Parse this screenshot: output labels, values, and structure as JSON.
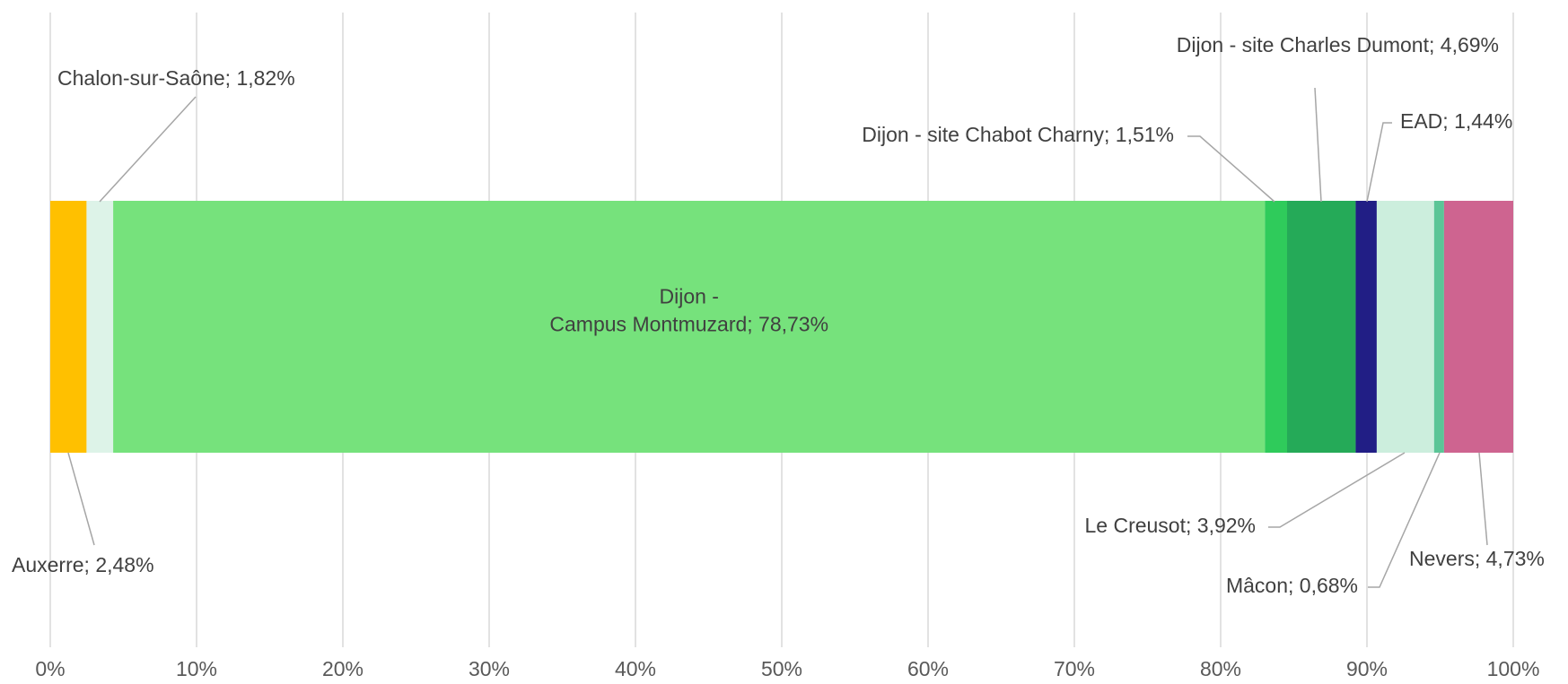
{
  "chart_data": {
    "type": "stacked-bar-100",
    "series": [
      {
        "name": "Auxerre",
        "color": "#FFC000",
        "values": [
          2.48
        ],
        "value_labels": [
          "Auxerre; 2,48%"
        ]
      },
      {
        "name": "Chalon-sur-Saône",
        "color": "#DDF3E8",
        "values": [
          1.82
        ],
        "value_labels": [
          "Chalon-sur-Saône; 1,82%"
        ]
      },
      {
        "name": "Dijon - Campus Montmuzard",
        "color": "#76E27C",
        "values": [
          78.73
        ],
        "value_labels": [
          "Dijon - Campus Montmuzard; 78,73%"
        ]
      },
      {
        "name": "Dijon - site Chabot Charny",
        "color": "#2FCB5B",
        "values": [
          1.51
        ],
        "value_labels": [
          "Dijon - site Chabot Charny; 1,51%"
        ]
      },
      {
        "name": "Dijon - site Charles Dumont",
        "color": "#25AA58",
        "values": [
          4.69
        ],
        "value_labels": [
          "Dijon - site Charles Dumont; 4,69%"
        ]
      },
      {
        "name": "EAD",
        "color": "#211E85",
        "values": [
          1.44
        ],
        "value_labels": [
          "EAD; 1,44%"
        ]
      },
      {
        "name": "Le Creusot",
        "color": "#CCEEDD",
        "values": [
          3.92
        ],
        "value_labels": [
          "Le Creusot; 3,92%"
        ]
      },
      {
        "name": "Mâcon",
        "color": "#5BC597",
        "values": [
          0.68
        ],
        "value_labels": [
          "Mâcon; 0,68%"
        ]
      },
      {
        "name": "Nevers",
        "color": "#CE6490",
        "values": [
          4.73
        ],
        "value_labels": [
          "Nevers; 4,73%"
        ]
      }
    ],
    "xlim": [
      0,
      100
    ],
    "xticks": [
      {
        "value": 0,
        "label": "0%"
      },
      {
        "value": 10,
        "label": "10%"
      },
      {
        "value": 20,
        "label": "20%"
      },
      {
        "value": 30,
        "label": "30%"
      },
      {
        "value": 40,
        "label": "40%"
      },
      {
        "value": 50,
        "label": "50%"
      },
      {
        "value": 60,
        "label": "60%"
      },
      {
        "value": 70,
        "label": "70%"
      },
      {
        "value": 80,
        "label": "80%"
      },
      {
        "value": 90,
        "label": "90%"
      },
      {
        "value": 100,
        "label": "100%"
      }
    ],
    "grid": true
  }
}
